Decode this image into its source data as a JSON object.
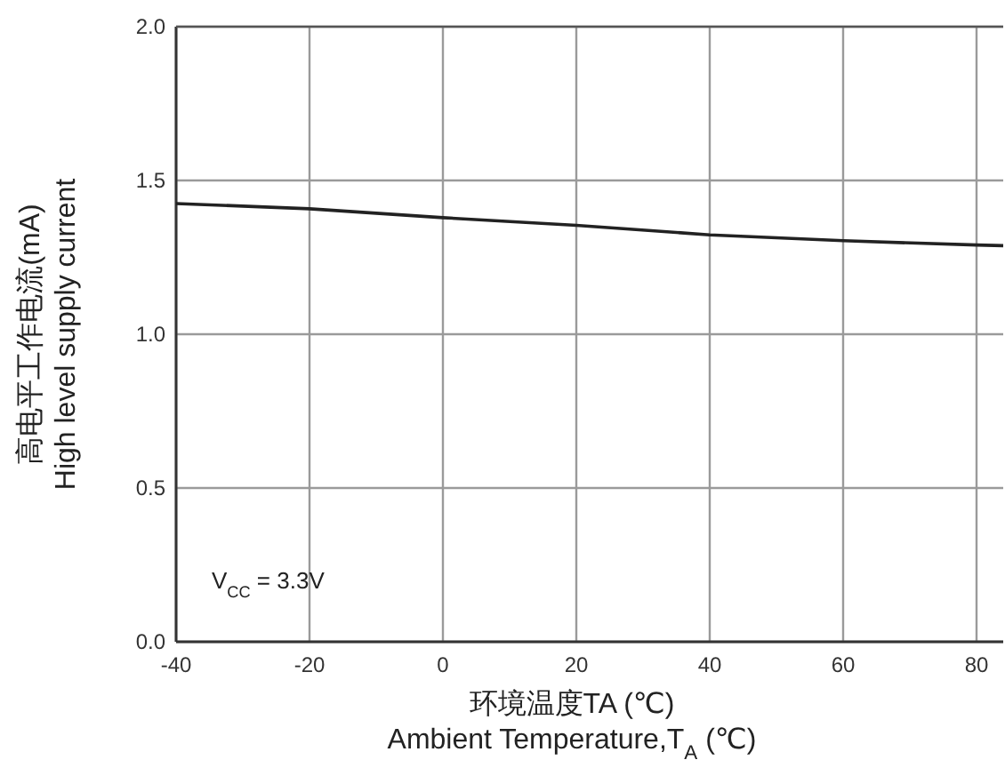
{
  "chart_data": {
    "type": "line",
    "xlabel": "环境温度TA (℃)\nAmbient Temperature,T$_{A}$ (℃)",
    "ylabel": "高电平工作电流(mA)\nHigh level supply current",
    "annotations": [
      "V$_{CC}$ = 3.3V"
    ],
    "x": [
      -40,
      -20,
      0,
      20,
      40,
      60,
      80,
      84
    ],
    "series": [
      {
        "color": "#222222",
        "values": [
          1.425,
          1.408,
          1.379,
          1.354,
          1.323,
          1.304,
          1.29,
          1.288
        ]
      }
    ],
    "xlim": [
      -40,
      84
    ],
    "ylim": [
      0,
      2
    ],
    "xticks": [
      -40,
      -20,
      0,
      20,
      40,
      60,
      80
    ],
    "yticks": [
      {
        "value": 0,
        "label": "0.0"
      },
      {
        "value": 0.5,
        "label": "0.5"
      },
      {
        "value": 1,
        "label": "1.0"
      },
      {
        "value": 1.5,
        "label": "1.5"
      },
      {
        "value": 2,
        "label": "2.0"
      }
    ],
    "grid": true,
    "marker": "none",
    "line_style": "solid"
  }
}
